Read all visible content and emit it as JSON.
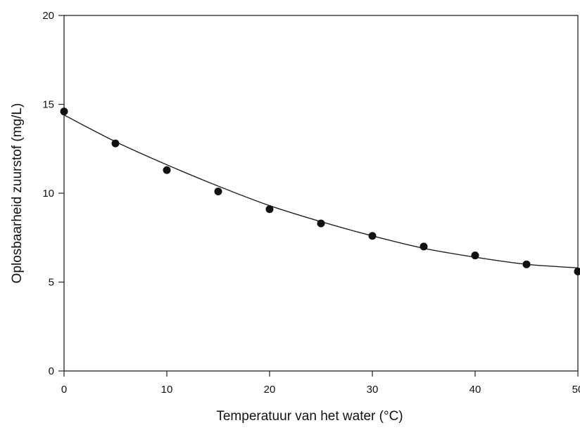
{
  "chart_data": {
    "type": "scatter",
    "title": "",
    "xlabel": "Temperatuur van het water (°C)",
    "ylabel": "Oplosbaarheid zuurstof (mg/L)",
    "xlim": [
      0,
      50
    ],
    "ylim": [
      0,
      20
    ],
    "x_ticks": [
      0,
      10,
      20,
      30,
      40,
      50
    ],
    "y_ticks": [
      0,
      5,
      10,
      15,
      20
    ],
    "grid": false,
    "legend": "none",
    "marker_color": "#111111",
    "line_color": "#222222",
    "series": [
      {
        "x": [
          0,
          5,
          10,
          15,
          20,
          25,
          30,
          35,
          40,
          45,
          50
        ],
        "y": [
          14.6,
          12.8,
          11.3,
          10.1,
          9.1,
          8.3,
          7.6,
          7.0,
          6.5,
          6.0,
          5.6
        ]
      }
    ],
    "trendline": {
      "type": "polynomial",
      "x": [
        0,
        5,
        10,
        15,
        20,
        25,
        30,
        35,
        40,
        45,
        50
      ],
      "y": [
        14.4,
        12.9,
        11.6,
        10.4,
        9.3,
        8.4,
        7.6,
        6.9,
        6.4,
        6.0,
        5.8
      ]
    }
  }
}
